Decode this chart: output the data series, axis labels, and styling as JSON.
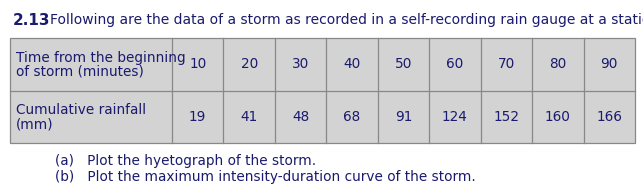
{
  "problem_number": "2.13",
  "header_text": "Following are the data of a storm as recorded in a self-recording rain gauge at a station:",
  "row1_label_line1": "Time from the beginning",
  "row1_label_line2": "of storm (minutes)",
  "row2_label_line1": "Cumulative rainfall",
  "row2_label_line2": "(mm)",
  "time_values": [
    10,
    20,
    30,
    40,
    50,
    60,
    70,
    80,
    90
  ],
  "rainfall_values": [
    19,
    41,
    48,
    68,
    91,
    124,
    152,
    160,
    166
  ],
  "question_a": "(a)   Plot the hyetograph of the storm.",
  "question_b": "(b)   Plot the maximum intensity-duration curve of the storm.",
  "table_bg": "#d3d3d3",
  "table_border": "#888888",
  "fig_bg": "#ffffff",
  "text_color": "#1a1a6e",
  "font_size_bold_num": 11,
  "font_size_header": 10,
  "font_size_table": 9.8,
  "font_size_questions": 9.8
}
